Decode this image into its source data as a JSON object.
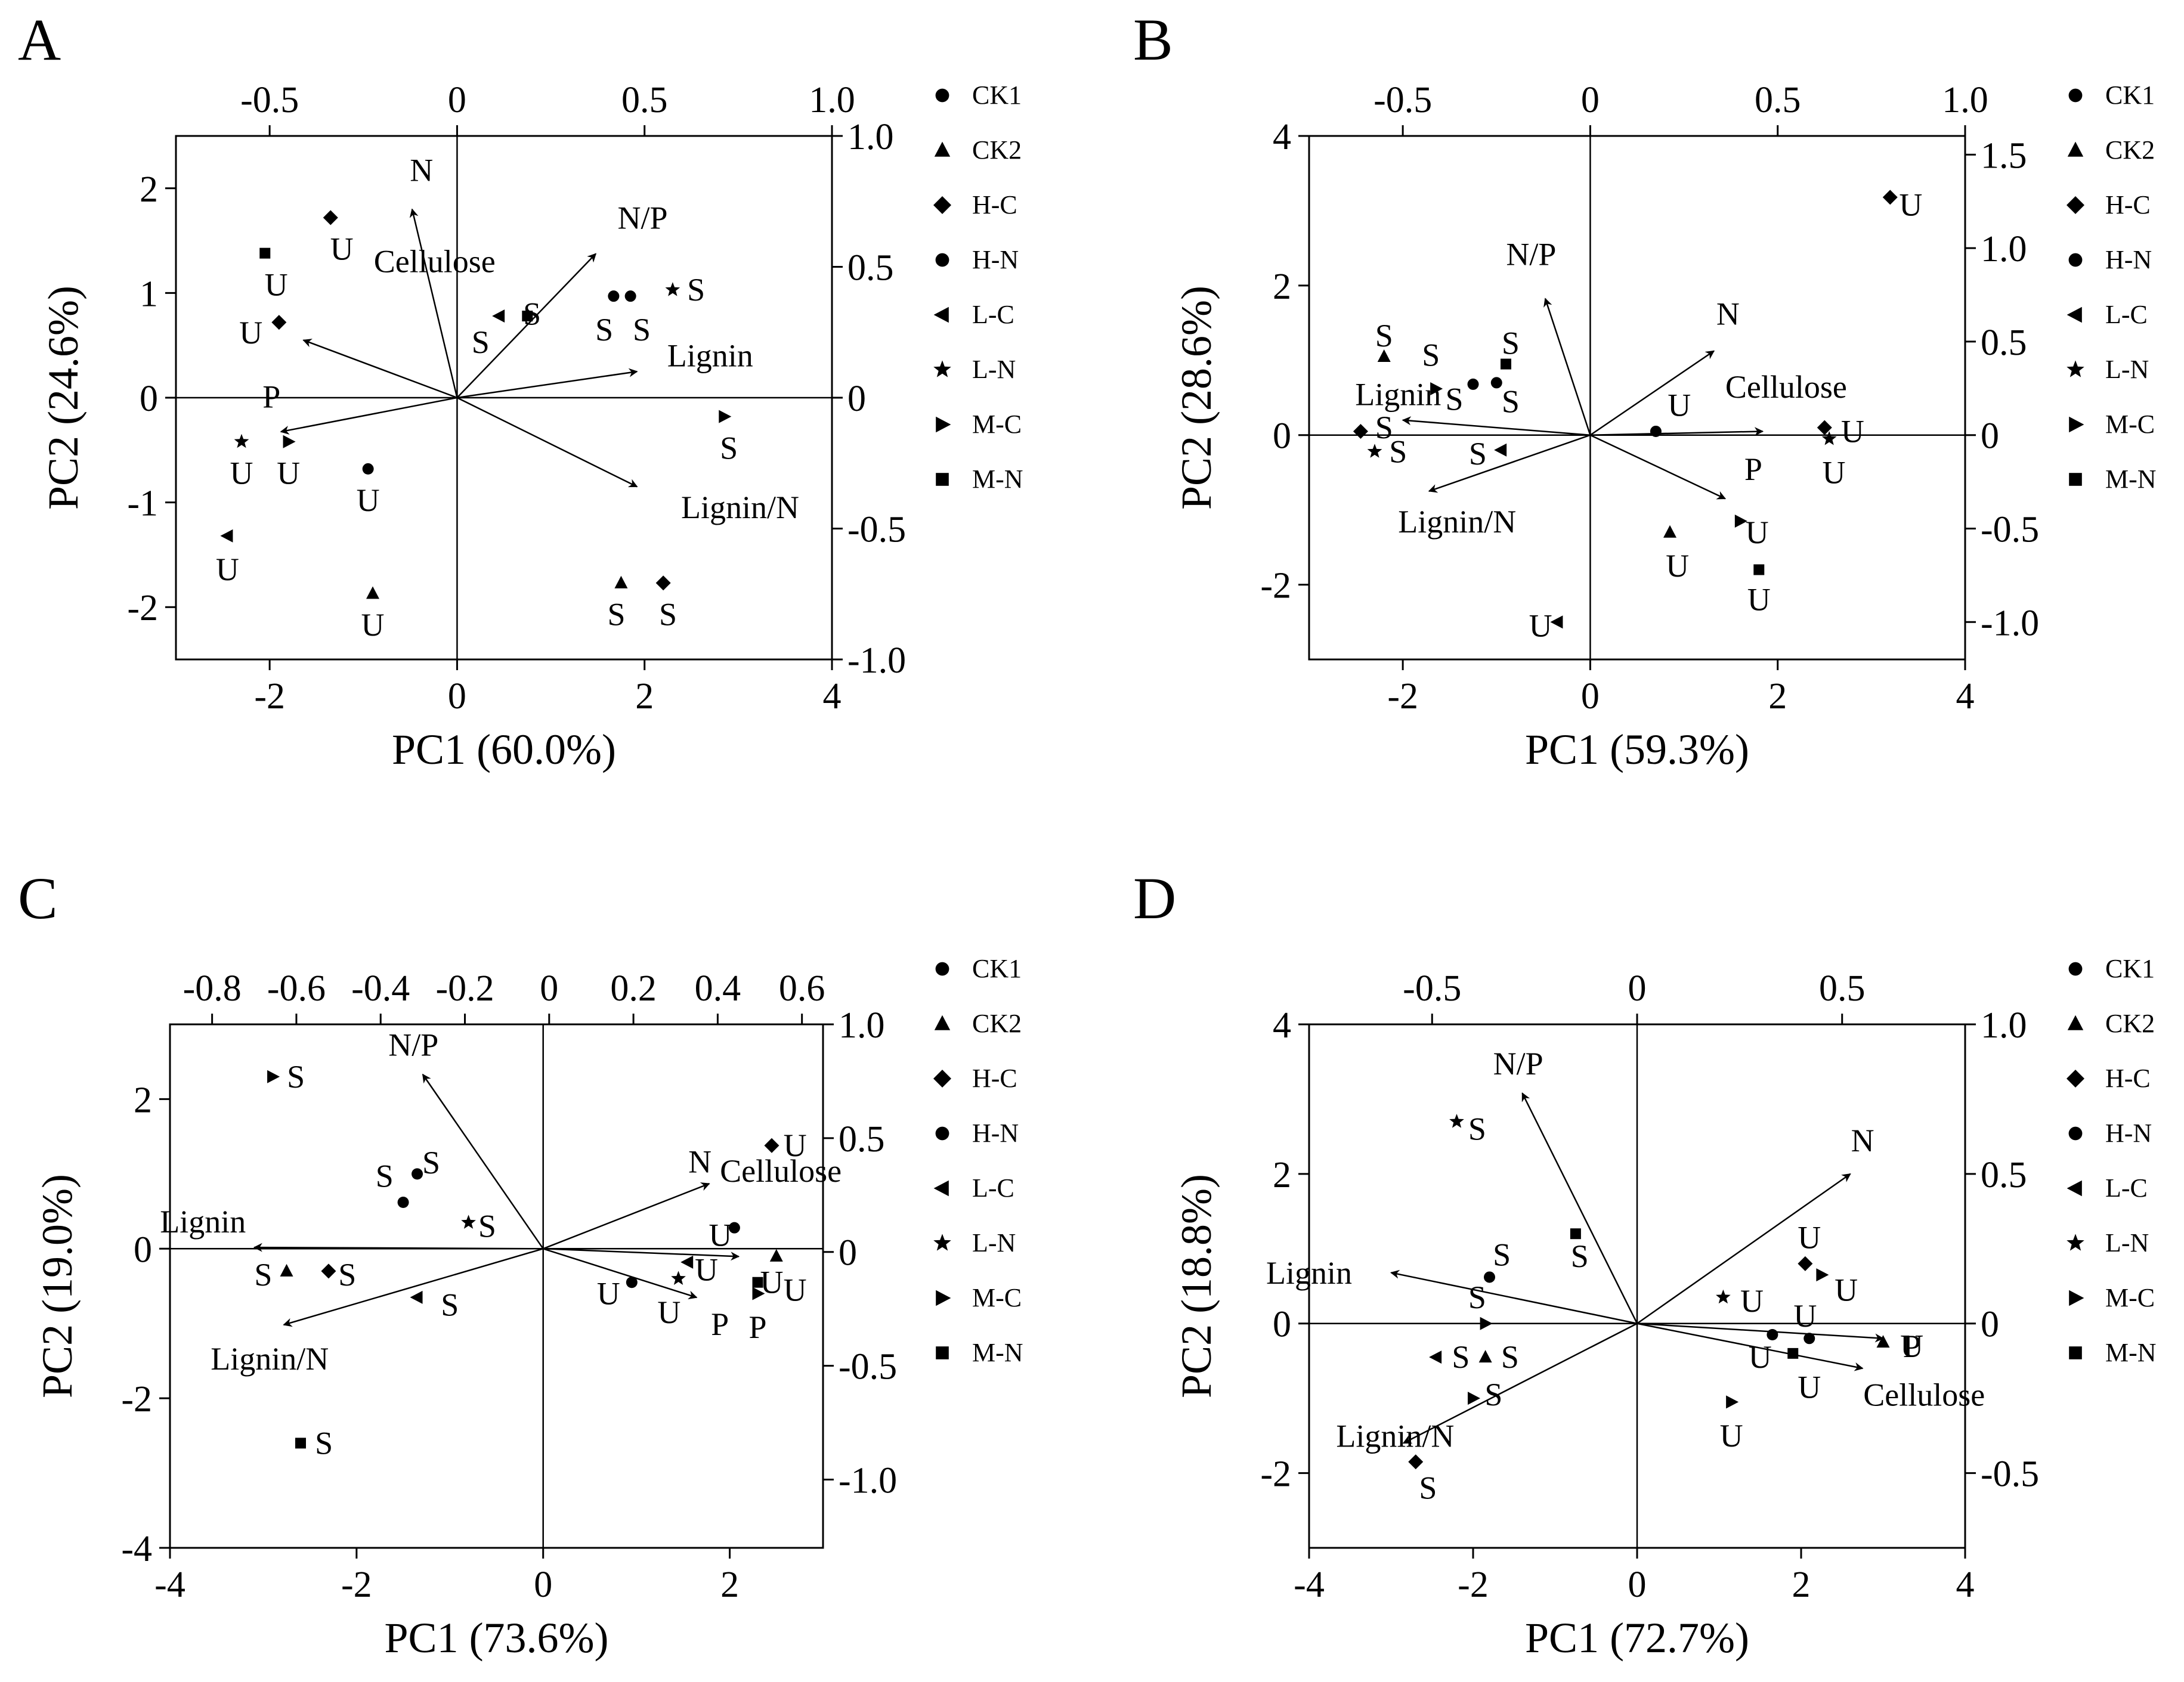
{
  "figure": {
    "legend_title": "",
    "colors": {
      "ink": "#000000",
      "background": "#ffffff"
    }
  },
  "legend": [
    {
      "marker": "circle",
      "label": "CK1"
    },
    {
      "marker": "triangle-up",
      "label": "CK2"
    },
    {
      "marker": "diamond",
      "label": "H-C"
    },
    {
      "marker": "circle",
      "label": "H-N"
    },
    {
      "marker": "triangle-left",
      "label": "L-C"
    },
    {
      "marker": "star",
      "label": "L-N"
    },
    {
      "marker": "triangle-right",
      "label": "M-C"
    },
    {
      "marker": "square",
      "label": "M-N"
    }
  ],
  "chart_data": [
    {
      "panel": "A",
      "type": "scatter",
      "subtype": "pca-biplot",
      "xlabel": "PC1 (60.0%)",
      "ylabel": "PC2 (24.6%)",
      "xlim": [
        -3,
        4
      ],
      "ylim": [
        -2.5,
        2.5
      ],
      "xticks": [
        -2,
        0,
        2,
        4
      ],
      "xtick_labels": [
        "-2",
        "0",
        "2",
        "4"
      ],
      "yticks": [
        -2,
        -1,
        0,
        1,
        2
      ],
      "ytick_labels": [
        "-2",
        "-1",
        "0",
        "1",
        "2"
      ],
      "top_lim": [
        -0.75,
        1.0
      ],
      "top_ticks": [
        -0.5,
        0,
        0.5,
        1.0
      ],
      "top_tick_labels": [
        "-0.5",
        "0",
        "0.5",
        "1.0"
      ],
      "right_lim": [
        -1.0,
        1.0
      ],
      "right_ticks": [
        -1.0,
        -0.5,
        0,
        0.5,
        1.0
      ],
      "right_tick_labels": [
        "-1.0",
        "-0.5",
        "0",
        "0.5",
        "1.0"
      ],
      "loadings": [
        {
          "label": "N",
          "x": -0.12,
          "y": 0.72,
          "label_dx": 0.1,
          "label_dy": 0.27
        },
        {
          "label": "N/P",
          "x": 0.37,
          "y": 0.55,
          "label_dx": 0.5,
          "label_dy": 0.24
        },
        {
          "label": "Lignin",
          "x": 0.48,
          "y": 0.1,
          "label_dx": 0.78,
          "label_dy": 0.05
        },
        {
          "label": "Lignin/N",
          "x": 0.48,
          "y": -0.34,
          "label_dx": 1.1,
          "label_dy": -0.3
        },
        {
          "label": "Cellulose",
          "x": -0.41,
          "y": 0.22,
          "label_dx": 1.4,
          "label_dy": 0.65
        },
        {
          "label": "P",
          "x": -0.47,
          "y": -0.13,
          "label_dx": -0.1,
          "label_dy": 0.23
        }
      ],
      "points": [
        {
          "group": "H-C",
          "x": -1.35,
          "y": 1.72,
          "label": "U",
          "label_dx": 0.12,
          "label_dy": -0.3
        },
        {
          "group": "M-N",
          "x": -2.05,
          "y": 1.38,
          "label": "U",
          "label_dx": 0.12,
          "label_dy": -0.3
        },
        {
          "group": "H-C",
          "x": -1.9,
          "y": 0.72,
          "label": "U",
          "label_dx": -0.3,
          "label_dy": -0.1
        },
        {
          "group": "L-N",
          "x": -2.3,
          "y": -0.42,
          "label": "U",
          "label_dx": 0.0,
          "label_dy": -0.3
        },
        {
          "group": "M-C",
          "x": -1.8,
          "y": -0.42,
          "label": "U",
          "label_dx": 0.0,
          "label_dy": -0.3
        },
        {
          "group": "H-N",
          "x": -0.95,
          "y": -0.68,
          "label": "U",
          "label_dx": 0.0,
          "label_dy": -0.3
        },
        {
          "group": "L-C",
          "x": -2.45,
          "y": -1.32,
          "label": "U",
          "label_dx": 0.0,
          "label_dy": -0.32
        },
        {
          "group": "CK2",
          "x": -0.9,
          "y": -1.87,
          "label": "U",
          "label_dx": 0.0,
          "label_dy": -0.3
        },
        {
          "group": "L-C",
          "x": 0.45,
          "y": 0.78,
          "label": "S",
          "label_dx": -0.2,
          "label_dy": -0.25
        },
        {
          "group": "M-N",
          "x": 0.75,
          "y": 0.78,
          "label": "S",
          "label_dx": 0.05,
          "label_dy": 0.02
        },
        {
          "group": "CK1",
          "x": 1.67,
          "y": 0.97,
          "label": "S",
          "label_dx": -0.1,
          "label_dy": -0.32
        },
        {
          "group": "H-N",
          "x": 1.85,
          "y": 0.97,
          "label": "S",
          "label_dx": 0.12,
          "label_dy": -0.32
        },
        {
          "group": "L-N",
          "x": 2.3,
          "y": 1.03,
          "label": "S",
          "label_dx": 0.25,
          "label_dy": 0.0
        },
        {
          "group": "M-C",
          "x": 2.85,
          "y": -0.18,
          "label": "S",
          "label_dx": 0.05,
          "label_dy": -0.3
        },
        {
          "group": "CK2",
          "x": 1.75,
          "y": -1.77,
          "label": "S",
          "label_dx": -0.05,
          "label_dy": -0.3
        },
        {
          "group": "H-C",
          "x": 2.2,
          "y": -1.77,
          "label": "S",
          "label_dx": 0.05,
          "label_dy": -0.3
        }
      ]
    },
    {
      "panel": "B",
      "type": "scatter",
      "subtype": "pca-biplot",
      "xlabel": "PC1 (59.3%)",
      "ylabel": "PC2 (28.6%)",
      "xlim": [
        -3,
        4
      ],
      "ylim": [
        -3,
        4
      ],
      "xticks": [
        -2,
        0,
        2,
        4
      ],
      "xtick_labels": [
        "-2",
        "0",
        "2",
        "4"
      ],
      "yticks": [
        -2,
        0,
        2,
        4
      ],
      "ytick_labels": [
        "-2",
        "0",
        "2",
        "4"
      ],
      "top_lim": [
        -0.75,
        1.0
      ],
      "top_ticks": [
        -0.5,
        0,
        0.5,
        1.0
      ],
      "top_tick_labels": [
        "-0.5",
        "0",
        "0.5",
        "1.0"
      ],
      "right_lim": [
        -1.2,
        1.6
      ],
      "right_ticks": [
        -1.0,
        -0.5,
        0,
        0.5,
        1.0,
        1.5
      ],
      "right_tick_labels": [
        "-1.0",
        "-0.5",
        "0",
        "0.5",
        "1.0",
        "1.5"
      ],
      "loadings": [
        {
          "label": "N/P",
          "x": -0.12,
          "y": 0.73,
          "label_dx": -0.15,
          "label_dy": 0.45
        },
        {
          "label": "N",
          "x": 0.33,
          "y": 0.45,
          "label_dx": 0.15,
          "label_dy": 0.35
        },
        {
          "label": "Cellulose",
          "x": 0.46,
          "y": 0.02,
          "label_dx": 0.25,
          "label_dy": 0.45
        },
        {
          "label": "Lignin",
          "x": -0.5,
          "y": 0.08,
          "label_dx": -0.05,
          "label_dy": 0.2
        },
        {
          "label": "Lignin/N",
          "x": -0.43,
          "y": -0.3,
          "label_dx": 0.3,
          "label_dy": -0.55
        },
        {
          "label": "P",
          "x": 0.36,
          "y": -0.34,
          "label_dx": 0.3,
          "label_dy": 0.25
        }
      ],
      "points": [
        {
          "group": "H-C",
          "x": 3.2,
          "y": 3.18,
          "label": "U",
          "label_dx": 0.22,
          "label_dy": -0.1
        },
        {
          "group": "CK2",
          "x": -2.2,
          "y": 1.05,
          "label": "S",
          "label_dx": 0.0,
          "label_dy": 0.28
        },
        {
          "group": "M-N",
          "x": -0.9,
          "y": 0.95,
          "label": "S",
          "label_dx": 0.05,
          "label_dy": 0.28
        },
        {
          "group": "M-C",
          "x": -1.65,
          "y": 0.62,
          "label": "S",
          "label_dx": -0.05,
          "label_dy": 0.45
        },
        {
          "group": "CK1",
          "x": -1.25,
          "y": 0.68,
          "label": "S",
          "label_dx": -0.2,
          "label_dy": -0.2
        },
        {
          "group": "H-N",
          "x": -1.0,
          "y": 0.7,
          "label": "S",
          "label_dx": 0.15,
          "label_dy": -0.25
        },
        {
          "group": "H-C",
          "x": -2.45,
          "y": 0.05,
          "label": "S",
          "label_dx": 0.25,
          "label_dy": 0.05
        },
        {
          "group": "L-N",
          "x": -2.3,
          "y": -0.22,
          "label": "S",
          "label_dx": 0.25,
          "label_dy": 0.0
        },
        {
          "group": "L-C",
          "x": -0.95,
          "y": -0.2,
          "label": "S",
          "label_dx": -0.25,
          "label_dy": -0.05
        },
        {
          "group": "CK1",
          "x": 0.7,
          "y": 0.05,
          "label": "U",
          "label_dx": 0.25,
          "label_dy": 0.35
        },
        {
          "group": "H-C",
          "x": 2.5,
          "y": 0.1,
          "label": "U",
          "label_dx": 0.3,
          "label_dy": -0.05
        },
        {
          "group": "L-N",
          "x": 2.55,
          "y": -0.05,
          "label": "U",
          "label_dx": 0.05,
          "label_dy": -0.45
        },
        {
          "group": "CK2",
          "x": 0.85,
          "y": -1.3,
          "label": "U",
          "label_dx": 0.08,
          "label_dy": -0.45
        },
        {
          "group": "M-C",
          "x": 1.6,
          "y": -1.15,
          "label": "U",
          "label_dx": 0.18,
          "label_dy": -0.15
        },
        {
          "group": "M-N",
          "x": 1.8,
          "y": -1.8,
          "label": "U",
          "label_dx": 0.0,
          "label_dy": -0.4
        },
        {
          "group": "L-C",
          "x": -0.35,
          "y": -2.5,
          "label": "U",
          "label_dx": -0.18,
          "label_dy": -0.05
        }
      ]
    },
    {
      "panel": "C",
      "type": "scatter",
      "subtype": "pca-biplot",
      "xlabel": "PC1 (73.6%)",
      "ylabel": "PC2 (19.0%)",
      "xlim": [
        -4,
        3
      ],
      "ylim": [
        -4,
        3
      ],
      "xticks": [
        -4,
        -2,
        0,
        2
      ],
      "xtick_labels": [
        "-4",
        "-2",
        "0",
        "2"
      ],
      "yticks": [
        -4,
        -2,
        0,
        2
      ],
      "ytick_labels": [
        "-4",
        "-2",
        "0",
        "2"
      ],
      "top_lim": [
        -0.9,
        0.65
      ],
      "top_ticks": [
        -0.8,
        -0.6,
        -0.4,
        -0.2,
        0,
        0.2,
        0.4,
        0.6
      ],
      "top_tick_labels": [
        "-0.8",
        "-0.6",
        "-0.4",
        "-0.2",
        "0",
        "0.2",
        "0.4",
        "0.6"
      ],
      "right_lim": [
        -1.3,
        1.0
      ],
      "right_ticks": [
        -1.0,
        -0.5,
        0,
        0.5,
        1.0
      ],
      "right_tick_labels": [
        "-1.0",
        "-0.5",
        "0",
        "0.5",
        "1.0"
      ],
      "loadings": [
        {
          "label": "N/P",
          "x": -0.3,
          "y": 0.78,
          "label_dx": -0.1,
          "label_dy": 0.25
        },
        {
          "label": "Lignin",
          "x": -0.7,
          "y": 0.02,
          "label_dx": -0.55,
          "label_dy": 0.2
        },
        {
          "label": "Lignin/N",
          "x": -0.63,
          "y": -0.32,
          "label_dx": -0.15,
          "label_dy": -0.6
        },
        {
          "label": "N",
          "x": 0.38,
          "y": 0.3,
          "label_dx": -0.1,
          "label_dy": 0.15
        },
        {
          "label": "Cellulose",
          "x": 0.45,
          "y": -0.02,
          "label_dx": 0.45,
          "label_dy": 1.0
        },
        {
          "label": "P",
          "x": 0.35,
          "y": -0.2,
          "label_dx": 0.25,
          "label_dy": -0.5
        }
      ],
      "points": [
        {
          "group": "M-C",
          "x": -2.9,
          "y": 2.3,
          "label": "S",
          "label_dx": 0.25,
          "label_dy": 0.0
        },
        {
          "group": "H-N",
          "x": -1.35,
          "y": 1.0,
          "label": "S",
          "label_dx": 0.15,
          "label_dy": 0.15
        },
        {
          "group": "CK1",
          "x": -1.5,
          "y": 0.62,
          "label": "S",
          "label_dx": -0.2,
          "label_dy": 0.35
        },
        {
          "group": "L-N",
          "x": -0.8,
          "y": 0.35,
          "label": "S",
          "label_dx": 0.2,
          "label_dy": -0.05
        },
        {
          "group": "CK2",
          "x": -2.75,
          "y": -0.3,
          "label": "S",
          "label_dx": -0.25,
          "label_dy": -0.05
        },
        {
          "group": "H-C",
          "x": -2.3,
          "y": -0.3,
          "label": "S",
          "label_dx": 0.2,
          "label_dy": -0.05
        },
        {
          "group": "L-C",
          "x": -1.35,
          "y": -0.65,
          "label": "S",
          "label_dx": 0.35,
          "label_dy": -0.1
        },
        {
          "group": "M-N",
          "x": -2.6,
          "y": -2.6,
          "label": "S",
          "label_dx": 0.25,
          "label_dy": 0.0
        },
        {
          "group": "H-C",
          "x": 2.45,
          "y": 1.38,
          "label": "U",
          "label_dx": 0.25,
          "label_dy": 0.0
        },
        {
          "group": "H-N",
          "x": 2.05,
          "y": 0.28,
          "label": "U",
          "label_dx": -0.15,
          "label_dy": -0.1
        },
        {
          "group": "CK1",
          "x": 0.95,
          "y": -0.45,
          "label": "U",
          "label_dx": -0.25,
          "label_dy": -0.15
        },
        {
          "group": "L-N",
          "x": 1.45,
          "y": -0.4,
          "label": "U",
          "label_dx": -0.1,
          "label_dy": -0.45
        },
        {
          "group": "L-C",
          "x": 1.55,
          "y": -0.18,
          "label": "U",
          "label_dx": 0.2,
          "label_dy": -0.1
        },
        {
          "group": "M-N",
          "x": 2.3,
          "y": -0.45,
          "label": "U",
          "label_dx": 0.15,
          "label_dy": 0.0
        },
        {
          "group": "CK2",
          "x": 2.5,
          "y": -0.1,
          "label": "U",
          "label_dx": 0.2,
          "label_dy": -0.45
        },
        {
          "group": "M-C",
          "x": 2.3,
          "y": -0.6,
          "label": "P",
          "label_dx": 0.0,
          "label_dy": -0.45
        }
      ]
    },
    {
      "panel": "D",
      "type": "scatter",
      "subtype": "pca-biplot",
      "xlabel": "PC1 (72.7%)",
      "ylabel": "PC2 (18.8%)",
      "xlim": [
        -4,
        4
      ],
      "ylim": [
        -3,
        4
      ],
      "xticks": [
        -4,
        -2,
        0,
        2,
        4
      ],
      "xtick_labels": [
        "-4",
        "-2",
        "0",
        "2",
        "4"
      ],
      "yticks": [
        -2,
        0,
        2,
        4
      ],
      "ytick_labels": [
        "-2",
        "0",
        "2",
        "4"
      ],
      "top_lim": [
        -0.8,
        0.8
      ],
      "top_ticks": [
        -0.5,
        0,
        0.5
      ],
      "top_tick_labels": [
        "-0.5",
        "0",
        "0.5"
      ],
      "right_lim": [
        -0.75,
        1.0
      ],
      "right_ticks": [
        -0.5,
        0,
        0.5,
        1.0
      ],
      "right_tick_labels": [
        "-0.5",
        "0",
        "0.5",
        "1.0"
      ],
      "loadings": [
        {
          "label": "N/P",
          "x": -0.28,
          "y": 0.77,
          "label_dx": -0.05,
          "label_dy": 0.25
        },
        {
          "label": "N",
          "x": 0.52,
          "y": 0.5,
          "label_dx": 0.15,
          "label_dy": 0.3
        },
        {
          "label": "Lignin",
          "x": -0.6,
          "y": 0.17,
          "label_dx": -1.0,
          "label_dy": -0.15
        },
        {
          "label": "Lignin/N",
          "x": -0.57,
          "y": -0.4,
          "label_dx": -0.1,
          "label_dy": -0.05
        },
        {
          "label": "Cellulose",
          "x": 0.55,
          "y": -0.15,
          "label_dx": 0.75,
          "label_dy": -0.5
        },
        {
          "label": "P",
          "x": 0.6,
          "y": -0.05,
          "label_dx": 0.35,
          "label_dy": -0.25
        }
      ],
      "points": [
        {
          "group": "L-N",
          "x": -2.2,
          "y": 2.7,
          "label": "S",
          "label_dx": 0.25,
          "label_dy": -0.1
        },
        {
          "group": "M-N",
          "x": -0.75,
          "y": 1.2,
          "label": "S",
          "label_dx": 0.05,
          "label_dy": -0.3
        },
        {
          "group": "CK1",
          "x": -1.8,
          "y": 0.62,
          "label": "S",
          "label_dx": 0.15,
          "label_dy": 0.3
        },
        {
          "group": "M-C",
          "x": -1.85,
          "y": 0.0,
          "label": "S",
          "label_dx": -0.1,
          "label_dy": 0.35
        },
        {
          "group": "L-C",
          "x": -2.45,
          "y": -0.45,
          "label": "S",
          "label_dx": 0.3,
          "label_dy": 0.0
        },
        {
          "group": "CK2",
          "x": -1.85,
          "y": -0.45,
          "label": "S",
          "label_dx": 0.3,
          "label_dy": 0.0
        },
        {
          "group": "M-C",
          "x": -2.0,
          "y": -1.0,
          "label": "S",
          "label_dx": 0.25,
          "label_dy": 0.05
        },
        {
          "group": "H-C",
          "x": -2.7,
          "y": -1.85,
          "label": "S",
          "label_dx": 0.15,
          "label_dy": -0.35
        },
        {
          "group": "L-N",
          "x": 1.05,
          "y": 0.35,
          "label": "U",
          "label_dx": 0.35,
          "label_dy": -0.05
        },
        {
          "group": "H-C",
          "x": 2.05,
          "y": 0.8,
          "label": "U",
          "label_dx": 0.05,
          "label_dy": 0.35
        },
        {
          "group": "M-C",
          "x": 2.25,
          "y": 0.65,
          "label": "U",
          "label_dx": 0.3,
          "label_dy": -0.2
        },
        {
          "group": "CK1",
          "x": 1.65,
          "y": -0.15,
          "label": "U",
          "label_dx": -0.15,
          "label_dy": -0.3
        },
        {
          "group": "H-N",
          "x": 2.1,
          "y": -0.2,
          "label": "U",
          "label_dx": -0.05,
          "label_dy": 0.3
        },
        {
          "group": "M-N",
          "x": 1.9,
          "y": -0.4,
          "label": "U",
          "label_dx": 0.2,
          "label_dy": -0.45
        },
        {
          "group": "CK2",
          "x": 3.0,
          "y": -0.25,
          "label": "U",
          "label_dx": 0.35,
          "label_dy": -0.05
        },
        {
          "group": "M-C",
          "x": 1.15,
          "y": -1.05,
          "label": "U",
          "label_dx": 0.0,
          "label_dy": -0.45
        }
      ]
    }
  ]
}
